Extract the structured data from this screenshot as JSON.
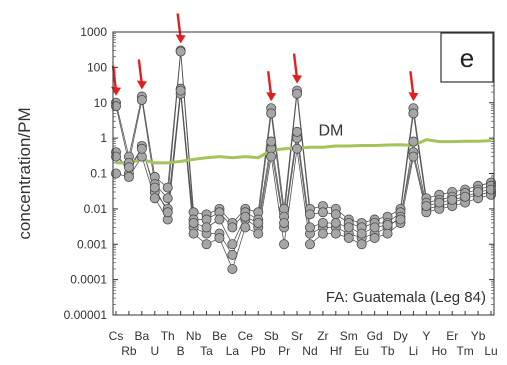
{
  "chart_data": {
    "type": "line",
    "title": "",
    "panel_label": "e",
    "annotation": "FA: Guatemala (Leg 84)",
    "ylabel": "concentration/PM",
    "xlabel": "",
    "yscale": "log",
    "ylim": [
      1e-05,
      1000
    ],
    "y_ticks": [
      "0.00001",
      "0.0001",
      "0.001",
      "0.01",
      "0.1",
      "1",
      "10",
      "100",
      "1000"
    ],
    "grid": false,
    "categories": [
      "Cs",
      "Rb",
      "Ba",
      "U",
      "Th",
      "B",
      "Nb",
      "Ta",
      "Be",
      "La",
      "Ce",
      "Pb",
      "Sb",
      "Pr",
      "Sr",
      "Nd",
      "Zr",
      "Hf",
      "Sm",
      "Eu",
      "Gd",
      "Tb",
      "Dy",
      "Li",
      "Y",
      "Ho",
      "Er",
      "Tm",
      "Yb",
      "Lu"
    ],
    "reference": {
      "name": "DM",
      "color": "#a3c45b",
      "values": [
        0.2,
        0.2,
        0.25,
        0.2,
        0.2,
        0.22,
        0.25,
        0.28,
        0.3,
        0.28,
        0.3,
        0.28,
        0.45,
        0.5,
        0.52,
        0.55,
        0.55,
        0.6,
        0.6,
        0.62,
        0.62,
        0.64,
        0.65,
        0.62,
        0.9,
        0.8,
        0.8,
        0.82,
        0.82,
        0.85
      ]
    },
    "series": [
      {
        "values": [
          10,
          0.3,
          15,
          0.08,
          0.04,
          300,
          0.008,
          0.007,
          0.01,
          0.004,
          0.01,
          0.008,
          7,
          0.01,
          22,
          0.01,
          0.012,
          0.01,
          0.005,
          0.004,
          0.005,
          0.006,
          0.01,
          7,
          0.02,
          0.025,
          0.03,
          0.035,
          0.045,
          0.055
        ]
      },
      {
        "values": [
          8,
          0.2,
          12,
          0.05,
          0.02,
          280,
          0.005,
          0.005,
          0.008,
          0.003,
          0.008,
          0.005,
          5,
          0.006,
          18,
          0.007,
          0.008,
          0.007,
          0.004,
          0.003,
          0.004,
          0.004,
          0.008,
          5,
          0.015,
          0.018,
          0.022,
          0.028,
          0.035,
          0.045
        ]
      },
      {
        "values": [
          0.4,
          0.1,
          0.6,
          0.03,
          0.01,
          25,
          0.003,
          0.002,
          0.002,
          0.0005,
          0.005,
          0.003,
          0.5,
          0.003,
          1,
          0.002,
          0.003,
          0.003,
          0.002,
          0.0015,
          0.002,
          0.003,
          0.006,
          0.4,
          0.01,
          0.012,
          0.015,
          0.02,
          0.025,
          0.03
        ]
      },
      {
        "values": [
          0.1,
          0.08,
          0.3,
          0.02,
          0.005,
          18,
          0.002,
          0.001,
          0.0015,
          0.0002,
          0.003,
          0.002,
          0.3,
          0.001,
          0.5,
          0.001,
          0.002,
          0.002,
          0.0015,
          0.001,
          0.0015,
          0.002,
          0.004,
          0.3,
          0.008,
          0.01,
          0.012,
          0.015,
          0.02,
          0.025
        ]
      },
      {
        "values": [
          0.3,
          0.15,
          0.5,
          0.04,
          0.008,
          22,
          0.004,
          0.003,
          0.005,
          0.001,
          0.006,
          0.004,
          0.8,
          0.004,
          1.5,
          0.003,
          0.004,
          0.004,
          0.003,
          0.002,
          0.003,
          0.0035,
          0.005,
          0.8,
          0.012,
          0.015,
          0.018,
          0.022,
          0.03,
          0.035
        ]
      }
    ],
    "highlighted": [
      "Cs",
      "Ba",
      "B",
      "Sb",
      "Sr",
      "Li"
    ],
    "highlight_color": "#e02020",
    "marker_color": "#a6a6a6",
    "line_color": "#555555"
  }
}
